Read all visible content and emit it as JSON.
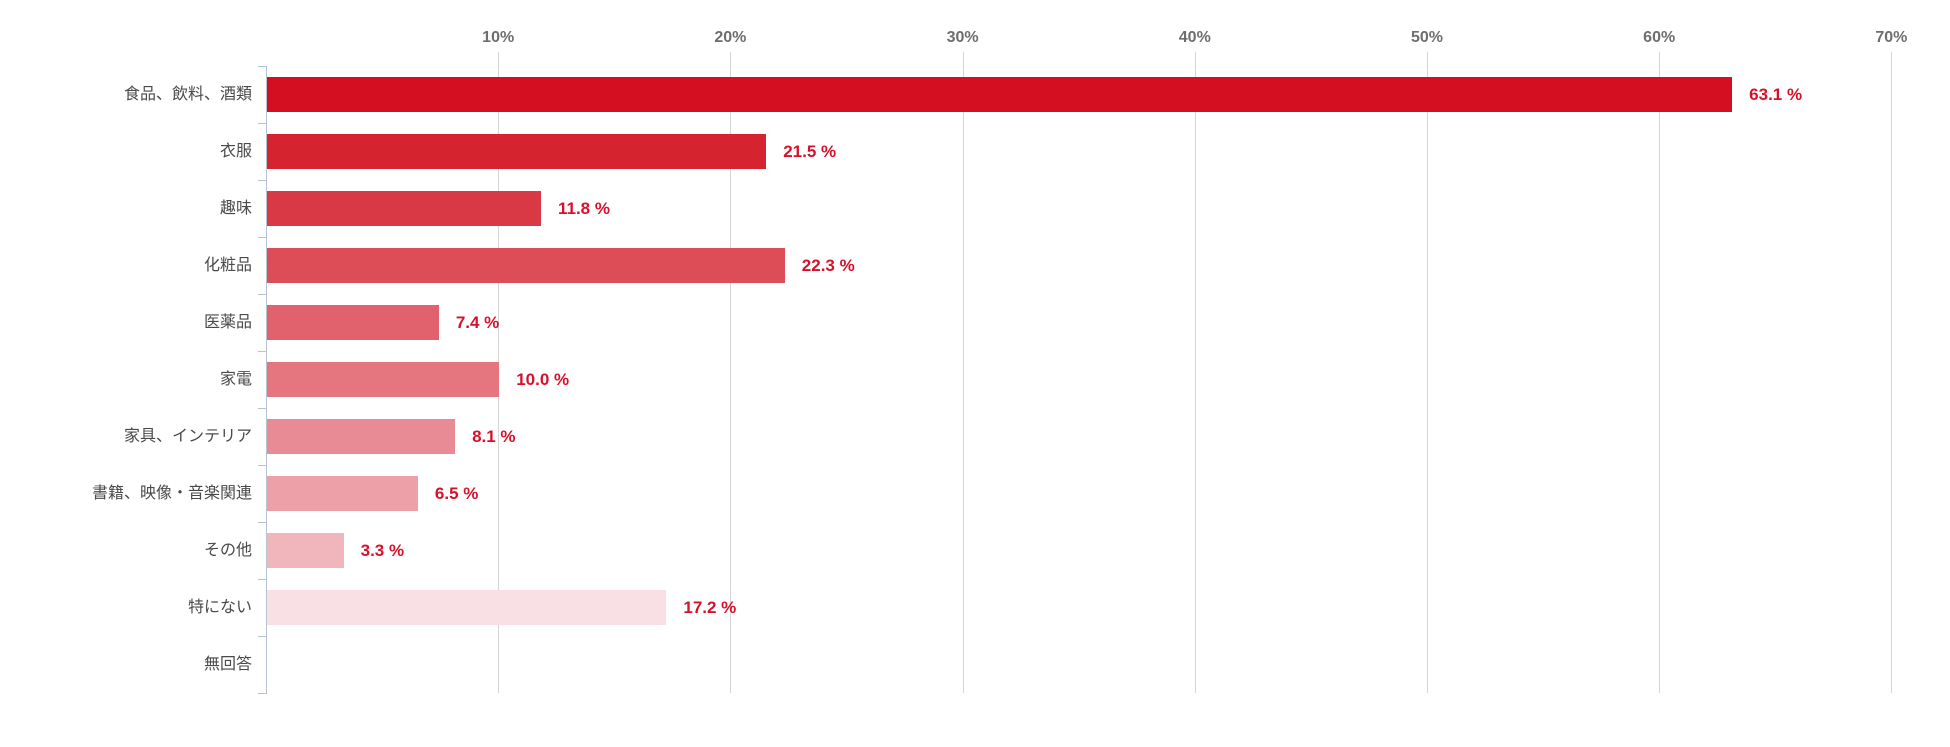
{
  "chart_data": {
    "type": "bar",
    "orientation": "horizontal",
    "title": "",
    "xlabel": "",
    "ylabel": "",
    "xlim": [
      0,
      70
    ],
    "grid": true,
    "legend": false,
    "categories": [
      "食品、飲料、酒類",
      "衣服",
      "趣味",
      "化粧品",
      "医薬品",
      "家電",
      "家具、インテリア",
      "書籍、映像・音楽関連",
      "その他",
      "特にない",
      "無回答"
    ],
    "values": [
      63.1,
      21.5,
      11.8,
      22.3,
      7.4,
      10.0,
      8.1,
      6.5,
      3.3,
      17.2,
      0
    ],
    "value_labels": [
      "63.1 %",
      "21.5 %",
      "11.8 %",
      "22.3 %",
      "7.4 %",
      "10.0 %",
      "8.1 %",
      "6.5 %",
      "3.3 %",
      "17.2 %",
      ""
    ],
    "bar_colors": [
      "#d30f21",
      "#d5232f",
      "#d93845",
      "#dd4d58",
      "#e1626c",
      "#e57680",
      "#e98b94",
      "#eda0a8",
      "#f1b5bc",
      "#f9e0e5",
      "#fae3e7"
    ],
    "x_ticks": [
      {
        "value": 10,
        "label": "10%"
      },
      {
        "value": 20,
        "label": "20%"
      },
      {
        "value": 30,
        "label": "30%"
      },
      {
        "value": 40,
        "label": "40%"
      },
      {
        "value": 50,
        "label": "50%"
      },
      {
        "value": 60,
        "label": "60%"
      },
      {
        "value": 70,
        "label": "70%"
      }
    ],
    "colors": {
      "background": "#ffffff",
      "grid": "#d6d6d6",
      "axis": "#b7c3d1",
      "value_label": "#d7112b",
      "category_label": "#4a4a4a",
      "tick_label": "#6e6e6e"
    }
  }
}
